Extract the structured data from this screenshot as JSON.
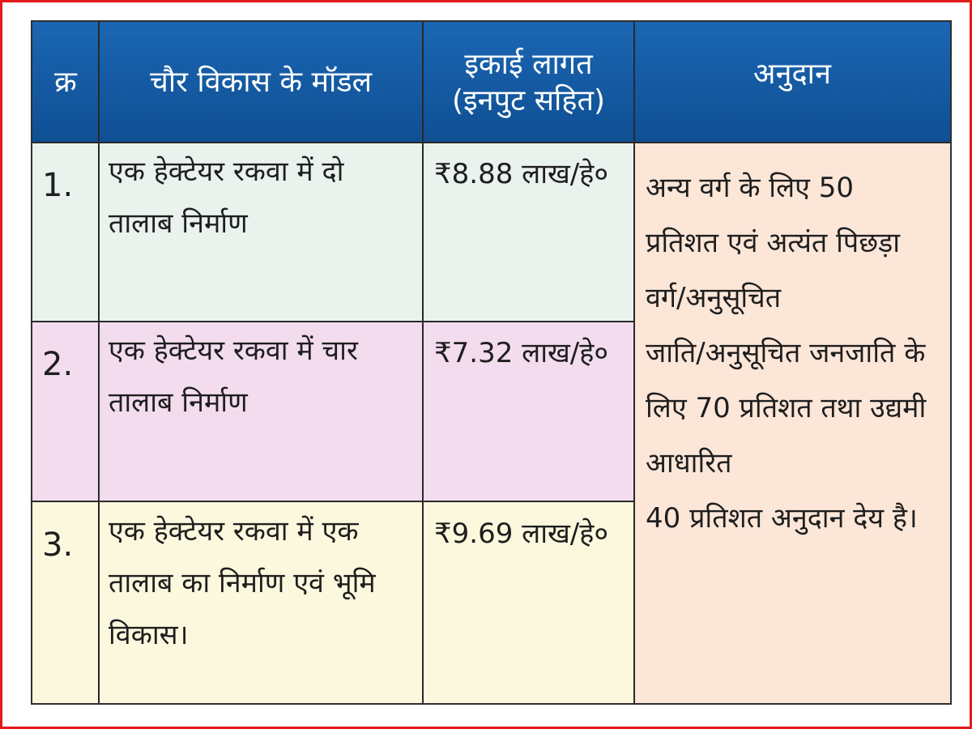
{
  "table": {
    "headers": {
      "serial": "क्र",
      "model": "चौर विकास के मॉडल",
      "cost_line1": "इकाई लागत",
      "cost_line2": "(इनपुट सहित)",
      "grant": "अनुदान"
    },
    "rows": [
      {
        "num": "1.",
        "model": "एक हेक्टेयर रकवा में दो तालाब निर्माण",
        "cost": "₹8.88 लाख/हे०"
      },
      {
        "num": "2.",
        "model": "एक हेक्टेयर रकवा में चार तालाब निर्माण",
        "cost": "₹7.32 लाख/हे०"
      },
      {
        "num": "3.",
        "model": "एक हेक्टेयर रकवा में एक तालाब का निर्माण एवं भूमि विकास।",
        "cost": "₹9.69 लाख/हे०"
      }
    ],
    "grant_lines": [
      "अन्य वर्ग के लिए 50",
      "प्रतिशत एवं अत्यंत पिछड़ा",
      "वर्ग/अनुसूचित",
      "जाति/अनुसूचित जनजाति के",
      "लिए 70 प्रतिशत तथा उद्यमी",
      "आधारित",
      "40 प्रतिशत अनुदान देय है।"
    ]
  },
  "colors": {
    "header_bg": "#1560ab",
    "row1_bg": "#e9f2ec",
    "row2_bg": "#f2dcee",
    "row3_bg": "#fbf8de",
    "grant_bg": "#fbe6d8",
    "frame_border": "#e31b1b"
  }
}
